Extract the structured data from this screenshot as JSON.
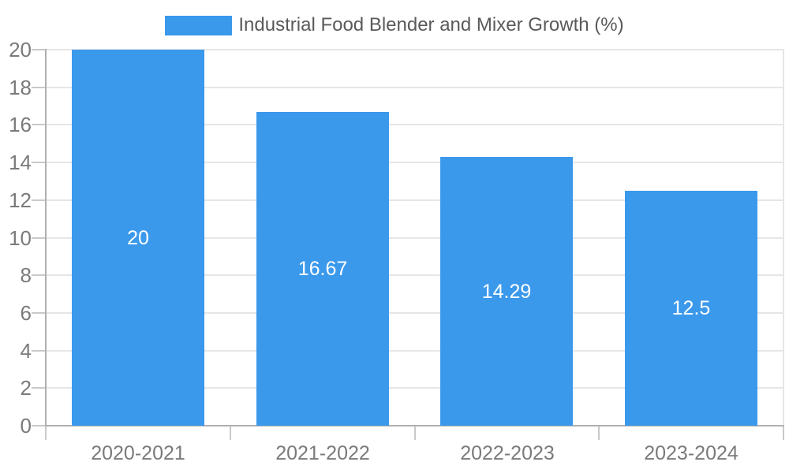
{
  "legend": {
    "label": "Industrial Food Blender and Mixer Growth (%)",
    "position": "top-center"
  },
  "colors": {
    "bar": "#3B99EC",
    "bar_label": "#FFFFFF",
    "grid": "#E6E6E6",
    "axis": "#B0B0B0",
    "tick": "#C9C9C9",
    "tick_label": "#7A7A7A",
    "legend_text": "#5A5A5A",
    "background": "#FFFFFF"
  },
  "chart_data": {
    "type": "bar",
    "title": "Industrial Food Blender and Mixer Growth (%)",
    "categories": [
      "2020-2021",
      "2021-2022",
      "2022-2023",
      "2023-2024"
    ],
    "values": [
      20,
      16.67,
      14.29,
      12.5
    ],
    "bar_labels": [
      "20",
      "16.67",
      "14.29",
      "12.5"
    ],
    "xlabel": "",
    "ylabel": "",
    "ylim": [
      0,
      20
    ],
    "yticks": [
      0,
      2,
      4,
      6,
      8,
      10,
      12,
      14,
      16,
      18,
      20
    ],
    "grid": true,
    "legend_position": "top-center",
    "bar_label_position": "center-inside"
  }
}
